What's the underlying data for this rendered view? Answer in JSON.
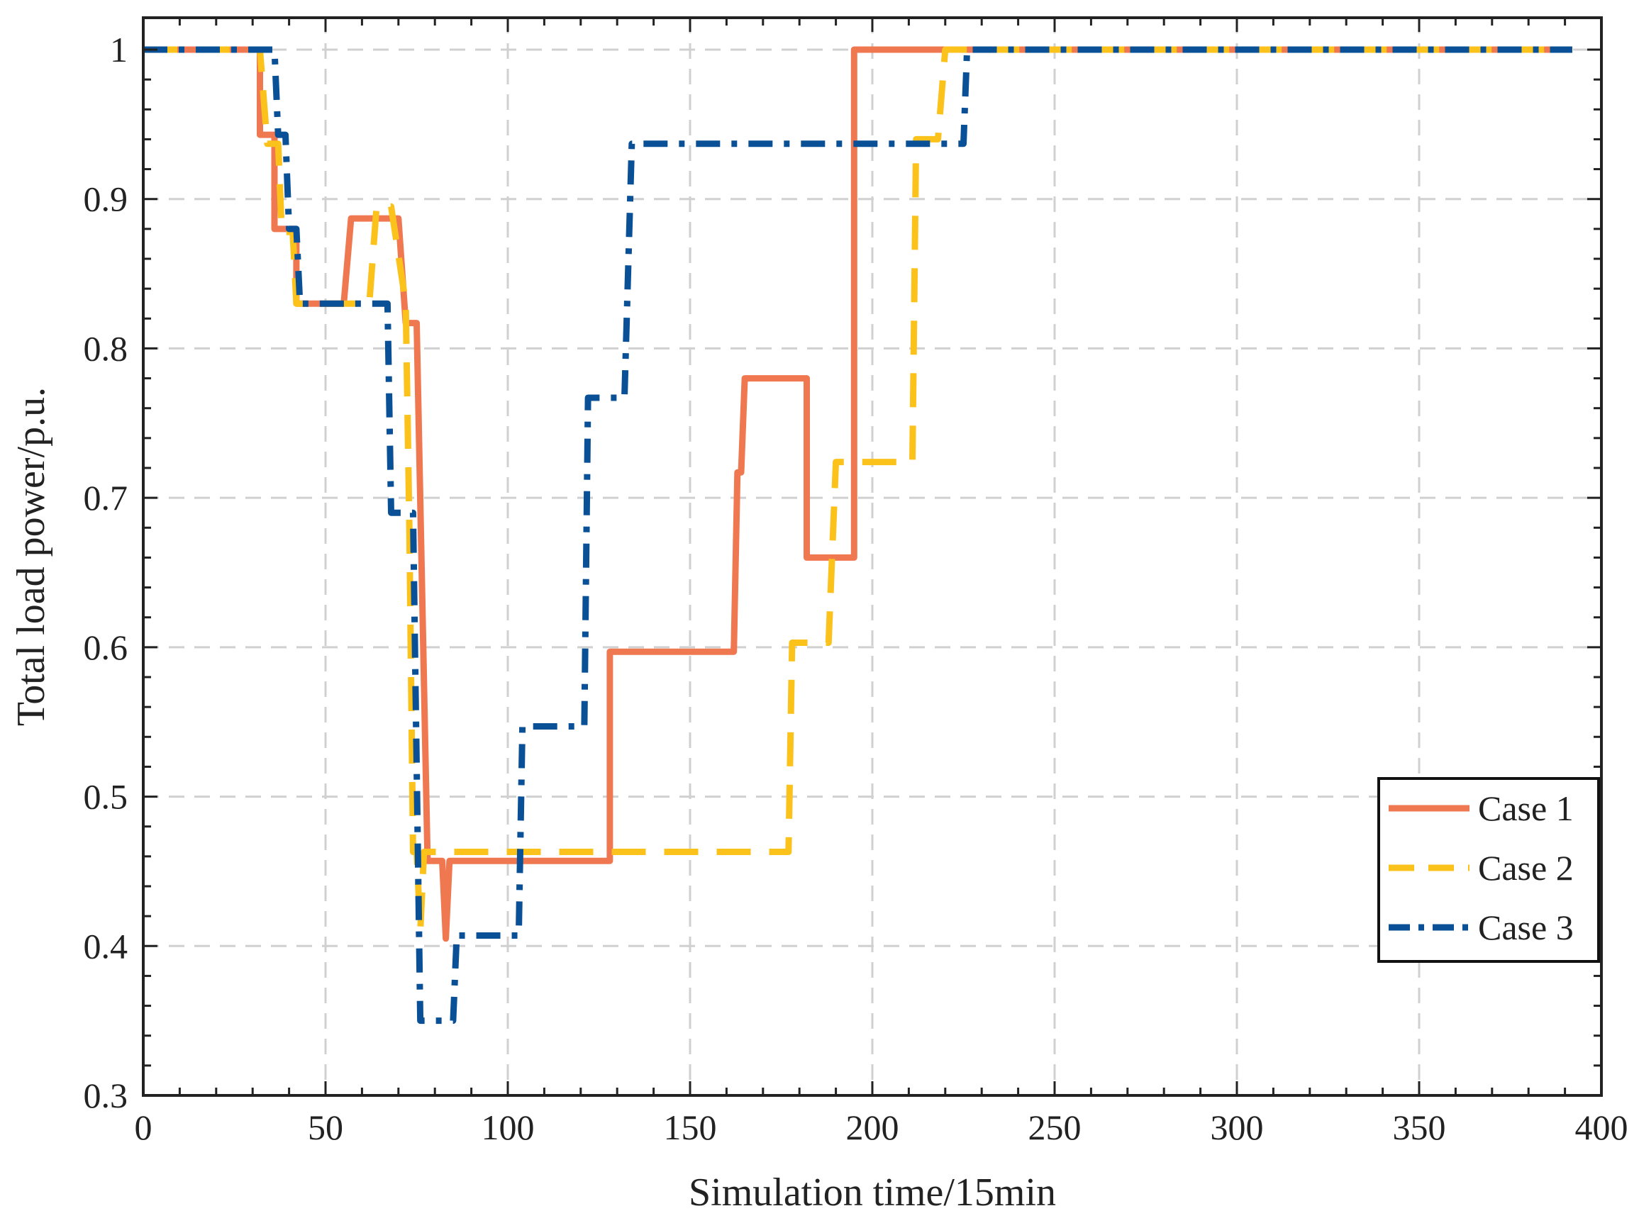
{
  "chart_data": {
    "type": "line",
    "title": "",
    "xlabel": "Simulation time/15min",
    "ylabel": "Total load power/p.u.",
    "xlim": [
      0,
      400
    ],
    "ylim": [
      0.3,
      1.02
    ],
    "xticks": [
      0,
      50,
      100,
      150,
      200,
      250,
      300,
      350,
      400
    ],
    "yticks": [
      0.3,
      0.4,
      0.5,
      0.6,
      0.7,
      0.8,
      0.9,
      1
    ],
    "xtick_labels": [
      "0",
      "50",
      "100",
      "150",
      "200",
      "250",
      "300",
      "350",
      "400"
    ],
    "ytick_labels": [
      "0.3",
      "0.4",
      "0.5",
      "0.6",
      "0.7",
      "0.8",
      "0.9",
      "1"
    ],
    "grid": true,
    "legend_position": "right",
    "series": [
      {
        "name": "Case 1",
        "color": "#f07850",
        "style": "solid",
        "points": [
          [
            0,
            1
          ],
          [
            32,
            1
          ],
          [
            32,
            0.943
          ],
          [
            36,
            0.943
          ],
          [
            36,
            0.88
          ],
          [
            42,
            0.88
          ],
          [
            42,
            0.83
          ],
          [
            55,
            0.83
          ],
          [
            57,
            0.887
          ],
          [
            70,
            0.887
          ],
          [
            72,
            0.817
          ],
          [
            75,
            0.817
          ],
          [
            78,
            0.457
          ],
          [
            82,
            0.457
          ],
          [
            83,
            0.405
          ],
          [
            84,
            0.457
          ],
          [
            128,
            0.457
          ],
          [
            128,
            0.597
          ],
          [
            162,
            0.597
          ],
          [
            163,
            0.717
          ],
          [
            164,
            0.717
          ],
          [
            165,
            0.78
          ],
          [
            182,
            0.78
          ],
          [
            182,
            0.66
          ],
          [
            195,
            0.66
          ],
          [
            195,
            1
          ],
          [
            392,
            1
          ]
        ]
      },
      {
        "name": "Case 2",
        "color": "#fcc21c",
        "style": "dashed",
        "points": [
          [
            0,
            1
          ],
          [
            32,
            1
          ],
          [
            34,
            0.937
          ],
          [
            37,
            0.937
          ],
          [
            38,
            0.878
          ],
          [
            41,
            0.878
          ],
          [
            42,
            0.83
          ],
          [
            62,
            0.83
          ],
          [
            64,
            0.895
          ],
          [
            68,
            0.895
          ],
          [
            72,
            0.83
          ],
          [
            73,
            0.68
          ],
          [
            74,
            0.463
          ],
          [
            75,
            0.463
          ],
          [
            76,
            0.41
          ],
          [
            77,
            0.463
          ],
          [
            177,
            0.463
          ],
          [
            178,
            0.603
          ],
          [
            188,
            0.603
          ],
          [
            190,
            0.724
          ],
          [
            211,
            0.724
          ],
          [
            212,
            0.94
          ],
          [
            218,
            0.94
          ],
          [
            220,
            1
          ],
          [
            392,
            1
          ]
        ]
      },
      {
        "name": "Case 3",
        "color": "#0a5096",
        "style": "dashdot",
        "points": [
          [
            0,
            1
          ],
          [
            36,
            1
          ],
          [
            37,
            0.943
          ],
          [
            39,
            0.943
          ],
          [
            40,
            0.88
          ],
          [
            42,
            0.88
          ],
          [
            43,
            0.83
          ],
          [
            67,
            0.83
          ],
          [
            68,
            0.69
          ],
          [
            74,
            0.69
          ],
          [
            76,
            0.35
          ],
          [
            85,
            0.35
          ],
          [
            86,
            0.407
          ],
          [
            103,
            0.407
          ],
          [
            104,
            0.547
          ],
          [
            121,
            0.547
          ],
          [
            122,
            0.767
          ],
          [
            132,
            0.767
          ],
          [
            134,
            0.937
          ],
          [
            225,
            0.937
          ],
          [
            226,
            1
          ],
          [
            392,
            1
          ]
        ]
      }
    ]
  }
}
